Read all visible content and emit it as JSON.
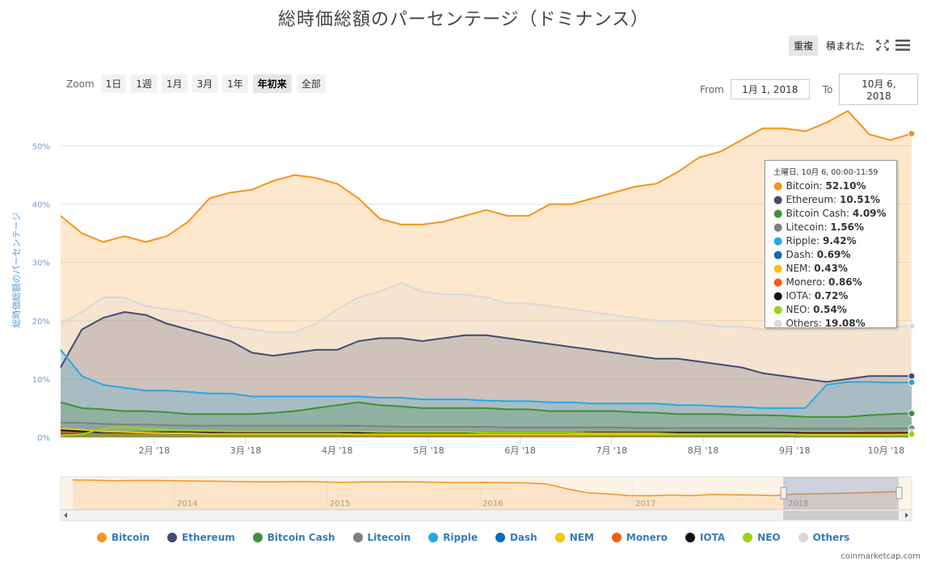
{
  "title": "総時価総額のパーセンテージ（ドミナンス）",
  "toggles": {
    "overlay": "重複",
    "stacked": "積まれた"
  },
  "zoom": {
    "label": "Zoom",
    "buttons": [
      "1日",
      "1週",
      "1月",
      "3月",
      "1年",
      "年初来",
      "全部"
    ],
    "active": "年初来"
  },
  "range": {
    "from_label": "From",
    "from": "1月 1, 2018",
    "to_label": "To",
    "to": "10月 6, 2018"
  },
  "credit": "coinmarketcap.com",
  "colors": {
    "Bitcoin": "#f7931a",
    "Ethereum": "#434b73",
    "Bitcoin Cash": "#3d9134",
    "Litecoin": "#808080",
    "Ripple": "#27a9e1",
    "Dash": "#1369b2",
    "NEM": "#f7c20a",
    "Monero": "#f35f0c",
    "IOTA": "#111111",
    "NEO": "#9ad318",
    "Others": "#d9d9d9"
  },
  "tooltip": {
    "header": "土曜日, 10月 6, 00:00-11:59",
    "rows": [
      {
        "name": "Bitcoin",
        "value": "52.10%"
      },
      {
        "name": "Ethereum",
        "value": "10.51%"
      },
      {
        "name": "Bitcoin Cash",
        "value": "4.09%"
      },
      {
        "name": "Litecoin",
        "value": "1.56%"
      },
      {
        "name": "Ripple",
        "value": "9.42%"
      },
      {
        "name": "Dash",
        "value": "0.69%"
      },
      {
        "name": "NEM",
        "value": "0.43%"
      },
      {
        "name": "Monero",
        "value": "0.86%"
      },
      {
        "name": "IOTA",
        "value": "0.72%"
      },
      {
        "name": "NEO",
        "value": "0.54%"
      },
      {
        "name": "Others",
        "value": "19.08%"
      }
    ]
  },
  "chart_data": {
    "type": "area",
    "ylabel": "総時価総額のパーセンテージ",
    "ylim": [
      0,
      57
    ],
    "yticks": [
      "0%",
      "10%",
      "20%",
      "30%",
      "40%",
      "50%"
    ],
    "xticks": [
      "2月 '18",
      "3月 '18",
      "4月 '18",
      "5月 '18",
      "6月 '18",
      "7月 '18",
      "8月 '18",
      "9月 '18",
      "10月 '18"
    ],
    "x": [
      "1月 1",
      "1月 8",
      "1月 15",
      "1月 22",
      "1月 29",
      "2月 5",
      "2月 12",
      "2月 19",
      "2月 26",
      "3月 5",
      "3月 12",
      "3月 19",
      "3月 26",
      "4月 2",
      "4月 9",
      "4月 16",
      "4月 23",
      "4月 30",
      "5月 7",
      "5月 14",
      "5月 21",
      "5月 28",
      "6月 4",
      "6月 11",
      "6月 18",
      "6月 25",
      "7月 2",
      "7月 9",
      "7月 16",
      "7月 23",
      "7月 30",
      "8月 6",
      "8月 13",
      "8月 20",
      "8月 27",
      "9月 3",
      "9月 10",
      "9月 17",
      "9月 24",
      "10月 1",
      "10月 6"
    ],
    "series": [
      {
        "name": "Bitcoin",
        "values": [
          38,
          35,
          33.5,
          34.5,
          33.5,
          34.5,
          37,
          41,
          42,
          42.5,
          44,
          45,
          44.5,
          43.5,
          41,
          37.5,
          36.5,
          36.5,
          37,
          38,
          39,
          38,
          38,
          40,
          40,
          41,
          42,
          43,
          43.5,
          45.5,
          48,
          49,
          51,
          53,
          53,
          52.5,
          54,
          56,
          52,
          51,
          52.1
        ]
      },
      {
        "name": "Ethereum",
        "values": [
          12,
          18.5,
          20.5,
          21.5,
          21,
          19.5,
          18.5,
          17.5,
          16.5,
          14.5,
          14,
          14.5,
          15,
          15,
          16.5,
          17,
          17,
          16.5,
          17,
          17.5,
          17.5,
          17,
          16.5,
          16,
          15.5,
          15,
          14.5,
          14,
          13.5,
          13.5,
          13,
          12.5,
          12,
          11,
          10.5,
          10,
          9.5,
          10,
          10.5,
          10.5,
          10.5
        ]
      },
      {
        "name": "Bitcoin Cash",
        "values": [
          6,
          5,
          4.8,
          4.5,
          4.5,
          4.3,
          4,
          4,
          4,
          4,
          4.2,
          4.5,
          5,
          5.5,
          6,
          5.5,
          5.3,
          5,
          5,
          5,
          5,
          4.8,
          4.8,
          4.5,
          4.5,
          4.5,
          4.5,
          4.3,
          4.2,
          4,
          4,
          4,
          3.8,
          3.8,
          3.7,
          3.5,
          3.5,
          3.5,
          3.8,
          4,
          4.09
        ]
      },
      {
        "name": "Litecoin",
        "values": [
          2.5,
          2.5,
          2.3,
          2.2,
          2.2,
          2.1,
          2,
          2,
          2,
          2,
          2,
          2,
          2,
          2,
          2,
          1.9,
          1.8,
          1.8,
          1.8,
          1.8,
          1.8,
          1.7,
          1.7,
          1.7,
          1.7,
          1.7,
          1.7,
          1.6,
          1.6,
          1.6,
          1.6,
          1.6,
          1.6,
          1.6,
          1.5,
          1.5,
          1.5,
          1.5,
          1.5,
          1.5,
          1.56
        ]
      },
      {
        "name": "Ripple",
        "values": [
          15,
          10.5,
          9,
          8.5,
          8,
          8,
          7.8,
          7.5,
          7.5,
          7,
          7,
          7,
          7,
          7,
          7,
          6.8,
          6.8,
          6.5,
          6.5,
          6.5,
          6.3,
          6.2,
          6.2,
          6,
          6,
          5.8,
          5.8,
          5.8,
          5.8,
          5.5,
          5.5,
          5.3,
          5.2,
          5,
          5,
          5,
          9,
          9.5,
          9.5,
          9.4,
          9.42
        ]
      },
      {
        "name": "Dash",
        "values": [
          0.7,
          0.8,
          0.8,
          0.9,
          0.9,
          0.9,
          0.9,
          0.8,
          0.8,
          0.8,
          0.8,
          0.8,
          0.8,
          0.8,
          0.8,
          0.8,
          0.8,
          0.8,
          0.8,
          0.8,
          0.7,
          0.7,
          0.7,
          0.7,
          0.7,
          0.7,
          0.7,
          0.7,
          0.7,
          0.7,
          0.7,
          0.7,
          0.7,
          0.7,
          0.7,
          0.7,
          0.7,
          0.7,
          0.7,
          0.7,
          0.69
        ]
      },
      {
        "name": "NEM",
        "values": [
          1.5,
          1.3,
          1,
          0.9,
          0.8,
          0.7,
          0.7,
          0.6,
          0.6,
          0.6,
          0.6,
          0.6,
          0.6,
          0.6,
          0.5,
          0.5,
          0.5,
          0.5,
          0.5,
          0.5,
          0.5,
          0.5,
          0.5,
          0.5,
          0.5,
          0.5,
          0.5,
          0.5,
          0.5,
          0.5,
          0.5,
          0.5,
          0.5,
          0.5,
          0.5,
          0.4,
          0.4,
          0.4,
          0.4,
          0.4,
          0.43
        ]
      },
      {
        "name": "Monero",
        "values": [
          0.9,
          0.9,
          0.9,
          0.8,
          0.8,
          0.8,
          0.8,
          0.8,
          0.8,
          0.8,
          0.8,
          0.8,
          0.8,
          0.8,
          0.8,
          0.8,
          0.8,
          0.8,
          0.8,
          0.8,
          0.8,
          0.8,
          0.8,
          0.8,
          0.8,
          0.8,
          0.8,
          0.8,
          0.8,
          0.8,
          0.8,
          0.8,
          0.8,
          0.8,
          0.8,
          0.8,
          0.8,
          0.8,
          0.9,
          0.9,
          0.86
        ]
      },
      {
        "name": "IOTA",
        "values": [
          1.2,
          1,
          0.9,
          0.8,
          0.8,
          0.8,
          0.8,
          0.8,
          0.8,
          0.8,
          0.8,
          0.8,
          0.8,
          0.8,
          0.8,
          0.8,
          0.8,
          0.8,
          0.8,
          0.8,
          0.8,
          0.8,
          0.8,
          0.8,
          0.8,
          0.8,
          0.8,
          0.8,
          0.8,
          0.8,
          0.8,
          0.8,
          0.8,
          0.8,
          0.8,
          0.7,
          0.7,
          0.7,
          0.7,
          0.7,
          0.72
        ]
      },
      {
        "name": "NEO",
        "values": [
          0.3,
          0.5,
          1.5,
          1.8,
          1.5,
          1.3,
          1.2,
          1.1,
          1,
          1,
          1,
          1,
          1,
          1,
          1,
          0.9,
          0.9,
          0.9,
          0.9,
          0.9,
          0.8,
          0.8,
          0.8,
          0.8,
          0.8,
          0.7,
          0.7,
          0.7,
          0.7,
          0.6,
          0.6,
          0.6,
          0.6,
          0.6,
          0.6,
          0.5,
          0.5,
          0.5,
          0.5,
          0.5,
          0.54
        ]
      },
      {
        "name": "Others",
        "values": [
          19.5,
          21.5,
          24,
          24,
          22.5,
          22,
          21.5,
          20.5,
          19,
          18.5,
          18,
          18,
          19.5,
          22,
          24,
          25,
          26.5,
          25,
          24.5,
          24.5,
          24,
          23,
          23,
          22.5,
          22,
          21.5,
          21,
          20.5,
          20,
          20,
          19.5,
          19,
          19,
          18.5,
          18.5,
          18.5,
          18.5,
          18.5,
          18.8,
          19,
          19.08
        ]
      }
    ]
  },
  "navigator": {
    "years": [
      "2014",
      "2015",
      "2016",
      "2017",
      "2018"
    ],
    "bitcoin_values": [
      95,
      94,
      92,
      93,
      93,
      92,
      91,
      90,
      89,
      88,
      88,
      89,
      88,
      86,
      87,
      87,
      88,
      87,
      86,
      85,
      86,
      85,
      84,
      80,
      62,
      48,
      44,
      38,
      37,
      40,
      38,
      42,
      41,
      40,
      38,
      43,
      44,
      46,
      48,
      50,
      52
    ]
  }
}
